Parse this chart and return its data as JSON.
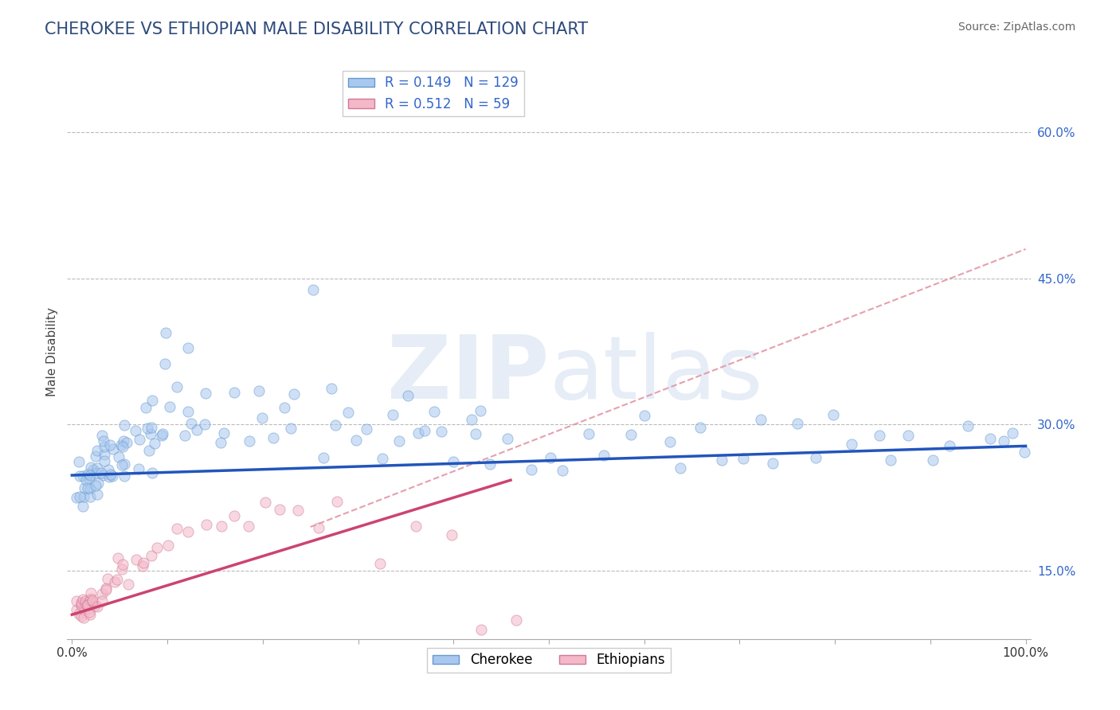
{
  "title": "CHEROKEE VS ETHIOPIAN MALE DISABILITY CORRELATION CHART",
  "source_text": "Source: ZipAtlas.com",
  "ylabel": "Male Disability",
  "xlim": [
    -0.005,
    1.005
  ],
  "ylim": [
    0.08,
    0.67
  ],
  "ytick_positions": [
    0.15,
    0.3,
    0.45,
    0.6
  ],
  "ytick_labels": [
    "15.0%",
    "30.0%",
    "45.0%",
    "60.0%"
  ],
  "title_color": "#2E4B7B",
  "title_fontsize": 15,
  "source_fontsize": 10,
  "watermark_text": "ZIPatlas",
  "watermark_color": "#C8D8EC",
  "watermark_alpha": 0.45,
  "cherokee_color": "#A8C8F0",
  "cherokee_edge_color": "#6699CC",
  "ethiopian_color": "#F4B8C8",
  "ethiopian_edge_color": "#D07898",
  "cherokee_R": 0.149,
  "cherokee_N": 129,
  "ethiopian_R": 0.512,
  "ethiopian_N": 59,
  "cherokee_line_color": "#2255BB",
  "cherokee_line_intercept": 0.248,
  "cherokee_line_slope": 0.03,
  "ethiopian_line_color": "#CC4470",
  "ethiopian_line_intercept": 0.105,
  "ethiopian_line_slope": 0.3,
  "ethiopian_line_xmax": 0.46,
  "dashed_line_color": "#E090A0",
  "dashed_line_intercept": 0.1,
  "dashed_line_slope": 0.38,
  "grid_color": "#BBBBBB",
  "dot_size": 90,
  "dot_alpha": 0.55,
  "background_color": "#FFFFFF",
  "legend_R_color": "#3366CC",
  "cherokee_scatter_x": [
    0.005,
    0.007,
    0.008,
    0.01,
    0.01,
    0.012,
    0.013,
    0.015,
    0.015,
    0.016,
    0.017,
    0.018,
    0.02,
    0.02,
    0.021,
    0.022,
    0.023,
    0.024,
    0.025,
    0.025,
    0.026,
    0.027,
    0.028,
    0.03,
    0.031,
    0.032,
    0.033,
    0.034,
    0.035,
    0.036,
    0.037,
    0.038,
    0.04,
    0.041,
    0.042,
    0.043,
    0.045,
    0.046,
    0.048,
    0.05,
    0.051,
    0.053,
    0.055,
    0.058,
    0.06,
    0.062,
    0.065,
    0.068,
    0.07,
    0.072,
    0.075,
    0.078,
    0.08,
    0.082,
    0.085,
    0.088,
    0.09,
    0.092,
    0.095,
    0.098,
    0.1,
    0.105,
    0.11,
    0.115,
    0.12,
    0.125,
    0.13,
    0.135,
    0.14,
    0.145,
    0.15,
    0.16,
    0.17,
    0.18,
    0.19,
    0.2,
    0.21,
    0.22,
    0.23,
    0.24,
    0.25,
    0.26,
    0.27,
    0.28,
    0.29,
    0.3,
    0.31,
    0.32,
    0.33,
    0.34,
    0.35,
    0.36,
    0.37,
    0.38,
    0.39,
    0.4,
    0.41,
    0.42,
    0.43,
    0.44,
    0.46,
    0.48,
    0.5,
    0.52,
    0.54,
    0.56,
    0.58,
    0.6,
    0.62,
    0.64,
    0.66,
    0.68,
    0.7,
    0.72,
    0.74,
    0.76,
    0.78,
    0.8,
    0.82,
    0.84,
    0.86,
    0.88,
    0.9,
    0.92,
    0.94,
    0.96,
    0.975,
    0.985,
    0.995
  ],
  "cherokee_scatter_y": [
    0.245,
    0.23,
    0.25,
    0.22,
    0.26,
    0.235,
    0.25,
    0.225,
    0.245,
    0.26,
    0.24,
    0.255,
    0.25,
    0.23,
    0.265,
    0.245,
    0.255,
    0.27,
    0.235,
    0.25,
    0.26,
    0.24,
    0.27,
    0.255,
    0.245,
    0.265,
    0.275,
    0.25,
    0.24,
    0.26,
    0.27,
    0.255,
    0.28,
    0.26,
    0.275,
    0.245,
    0.27,
    0.285,
    0.255,
    0.275,
    0.29,
    0.265,
    0.28,
    0.3,
    0.27,
    0.255,
    0.295,
    0.31,
    0.28,
    0.265,
    0.285,
    0.3,
    0.27,
    0.295,
    0.315,
    0.28,
    0.265,
    0.3,
    0.285,
    0.32,
    0.385,
    0.36,
    0.345,
    0.37,
    0.295,
    0.33,
    0.285,
    0.31,
    0.295,
    0.325,
    0.28,
    0.305,
    0.325,
    0.295,
    0.345,
    0.31,
    0.28,
    0.315,
    0.29,
    0.335,
    0.44,
    0.275,
    0.34,
    0.295,
    0.315,
    0.28,
    0.3,
    0.27,
    0.31,
    0.285,
    0.325,
    0.29,
    0.28,
    0.315,
    0.295,
    0.27,
    0.305,
    0.285,
    0.32,
    0.26,
    0.28,
    0.255,
    0.27,
    0.245,
    0.29,
    0.265,
    0.28,
    0.3,
    0.285,
    0.26,
    0.295,
    0.265,
    0.28,
    0.295,
    0.26,
    0.295,
    0.275,
    0.3,
    0.285,
    0.29,
    0.275,
    0.29,
    0.265,
    0.28,
    0.295,
    0.285,
    0.275,
    0.295,
    0.28
  ],
  "ethiopian_scatter_x": [
    0.005,
    0.006,
    0.007,
    0.008,
    0.008,
    0.009,
    0.01,
    0.01,
    0.011,
    0.012,
    0.012,
    0.013,
    0.014,
    0.015,
    0.016,
    0.017,
    0.018,
    0.018,
    0.019,
    0.02,
    0.021,
    0.022,
    0.023,
    0.024,
    0.025,
    0.027,
    0.03,
    0.032,
    0.035,
    0.038,
    0.04,
    0.043,
    0.046,
    0.048,
    0.05,
    0.055,
    0.06,
    0.065,
    0.07,
    0.075,
    0.08,
    0.09,
    0.1,
    0.11,
    0.125,
    0.14,
    0.155,
    0.17,
    0.185,
    0.2,
    0.22,
    0.24,
    0.26,
    0.28,
    0.32,
    0.36,
    0.4,
    0.43,
    0.46
  ],
  "ethiopian_scatter_y": [
    0.113,
    0.11,
    0.115,
    0.112,
    0.118,
    0.108,
    0.116,
    0.112,
    0.118,
    0.11,
    0.115,
    0.113,
    0.12,
    0.112,
    0.115,
    0.118,
    0.112,
    0.12,
    0.115,
    0.118,
    0.122,
    0.115,
    0.12,
    0.118,
    0.125,
    0.12,
    0.13,
    0.125,
    0.135,
    0.128,
    0.138,
    0.13,
    0.145,
    0.15,
    0.142,
    0.158,
    0.148,
    0.162,
    0.155,
    0.17,
    0.165,
    0.175,
    0.18,
    0.19,
    0.185,
    0.2,
    0.195,
    0.21,
    0.2,
    0.22,
    0.21,
    0.215,
    0.205,
    0.218,
    0.165,
    0.195,
    0.178,
    0.09,
    0.105
  ]
}
